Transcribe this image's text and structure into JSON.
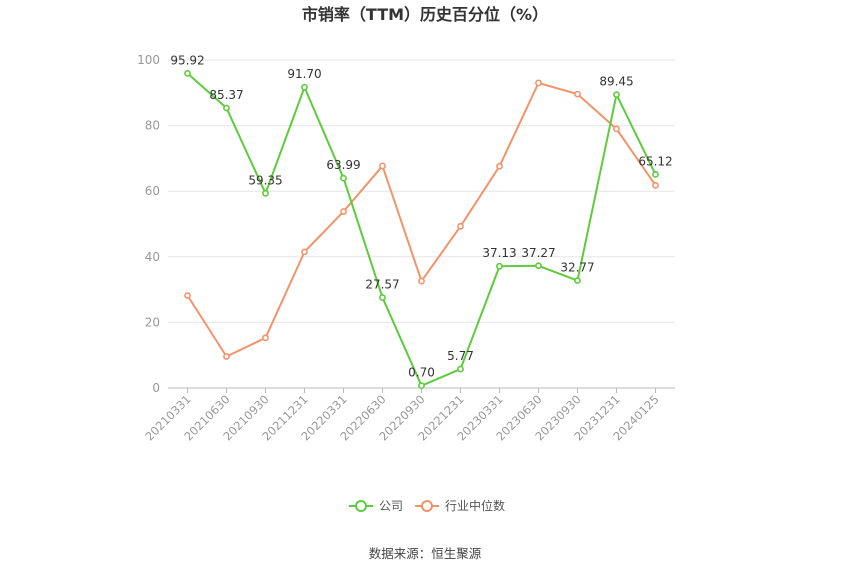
{
  "chart_data": {
    "type": "line",
    "title": "市销率（TTM）历史百分位（%）",
    "xlabel": "",
    "ylabel": "",
    "ylim": [
      0,
      100
    ],
    "yticks": [
      0,
      20,
      40,
      60,
      80,
      100
    ],
    "grid": true,
    "legend_position": "bottom",
    "categories": [
      "20210331",
      "20210630",
      "20210930",
      "20211231",
      "20220331",
      "20220630",
      "20220930",
      "20221231",
      "20230331",
      "20230630",
      "20230930",
      "20231231",
      "20240125"
    ],
    "series": [
      {
        "name": "公司",
        "color": "#5ecb3c",
        "values": [
          95.92,
          85.37,
          59.35,
          91.7,
          63.99,
          27.57,
          0.7,
          5.77,
          37.13,
          37.27,
          32.77,
          89.45,
          65.12
        ],
        "labels": [
          "95.92",
          "85.37",
          "59.35",
          "91.70",
          "63.99",
          "27.57",
          "0.70",
          "5.77",
          "37.13",
          "37.27",
          "32.77",
          "89.45",
          "65.12"
        ]
      },
      {
        "name": "行业中位数",
        "color": "#f4936a",
        "values": [
          28.2,
          9.6,
          15.3,
          41.5,
          53.8,
          67.7,
          32.6,
          49.3,
          67.6,
          93.0,
          89.6,
          79.0,
          61.8
        ]
      }
    ]
  },
  "source": "数据来源：恒生聚源"
}
